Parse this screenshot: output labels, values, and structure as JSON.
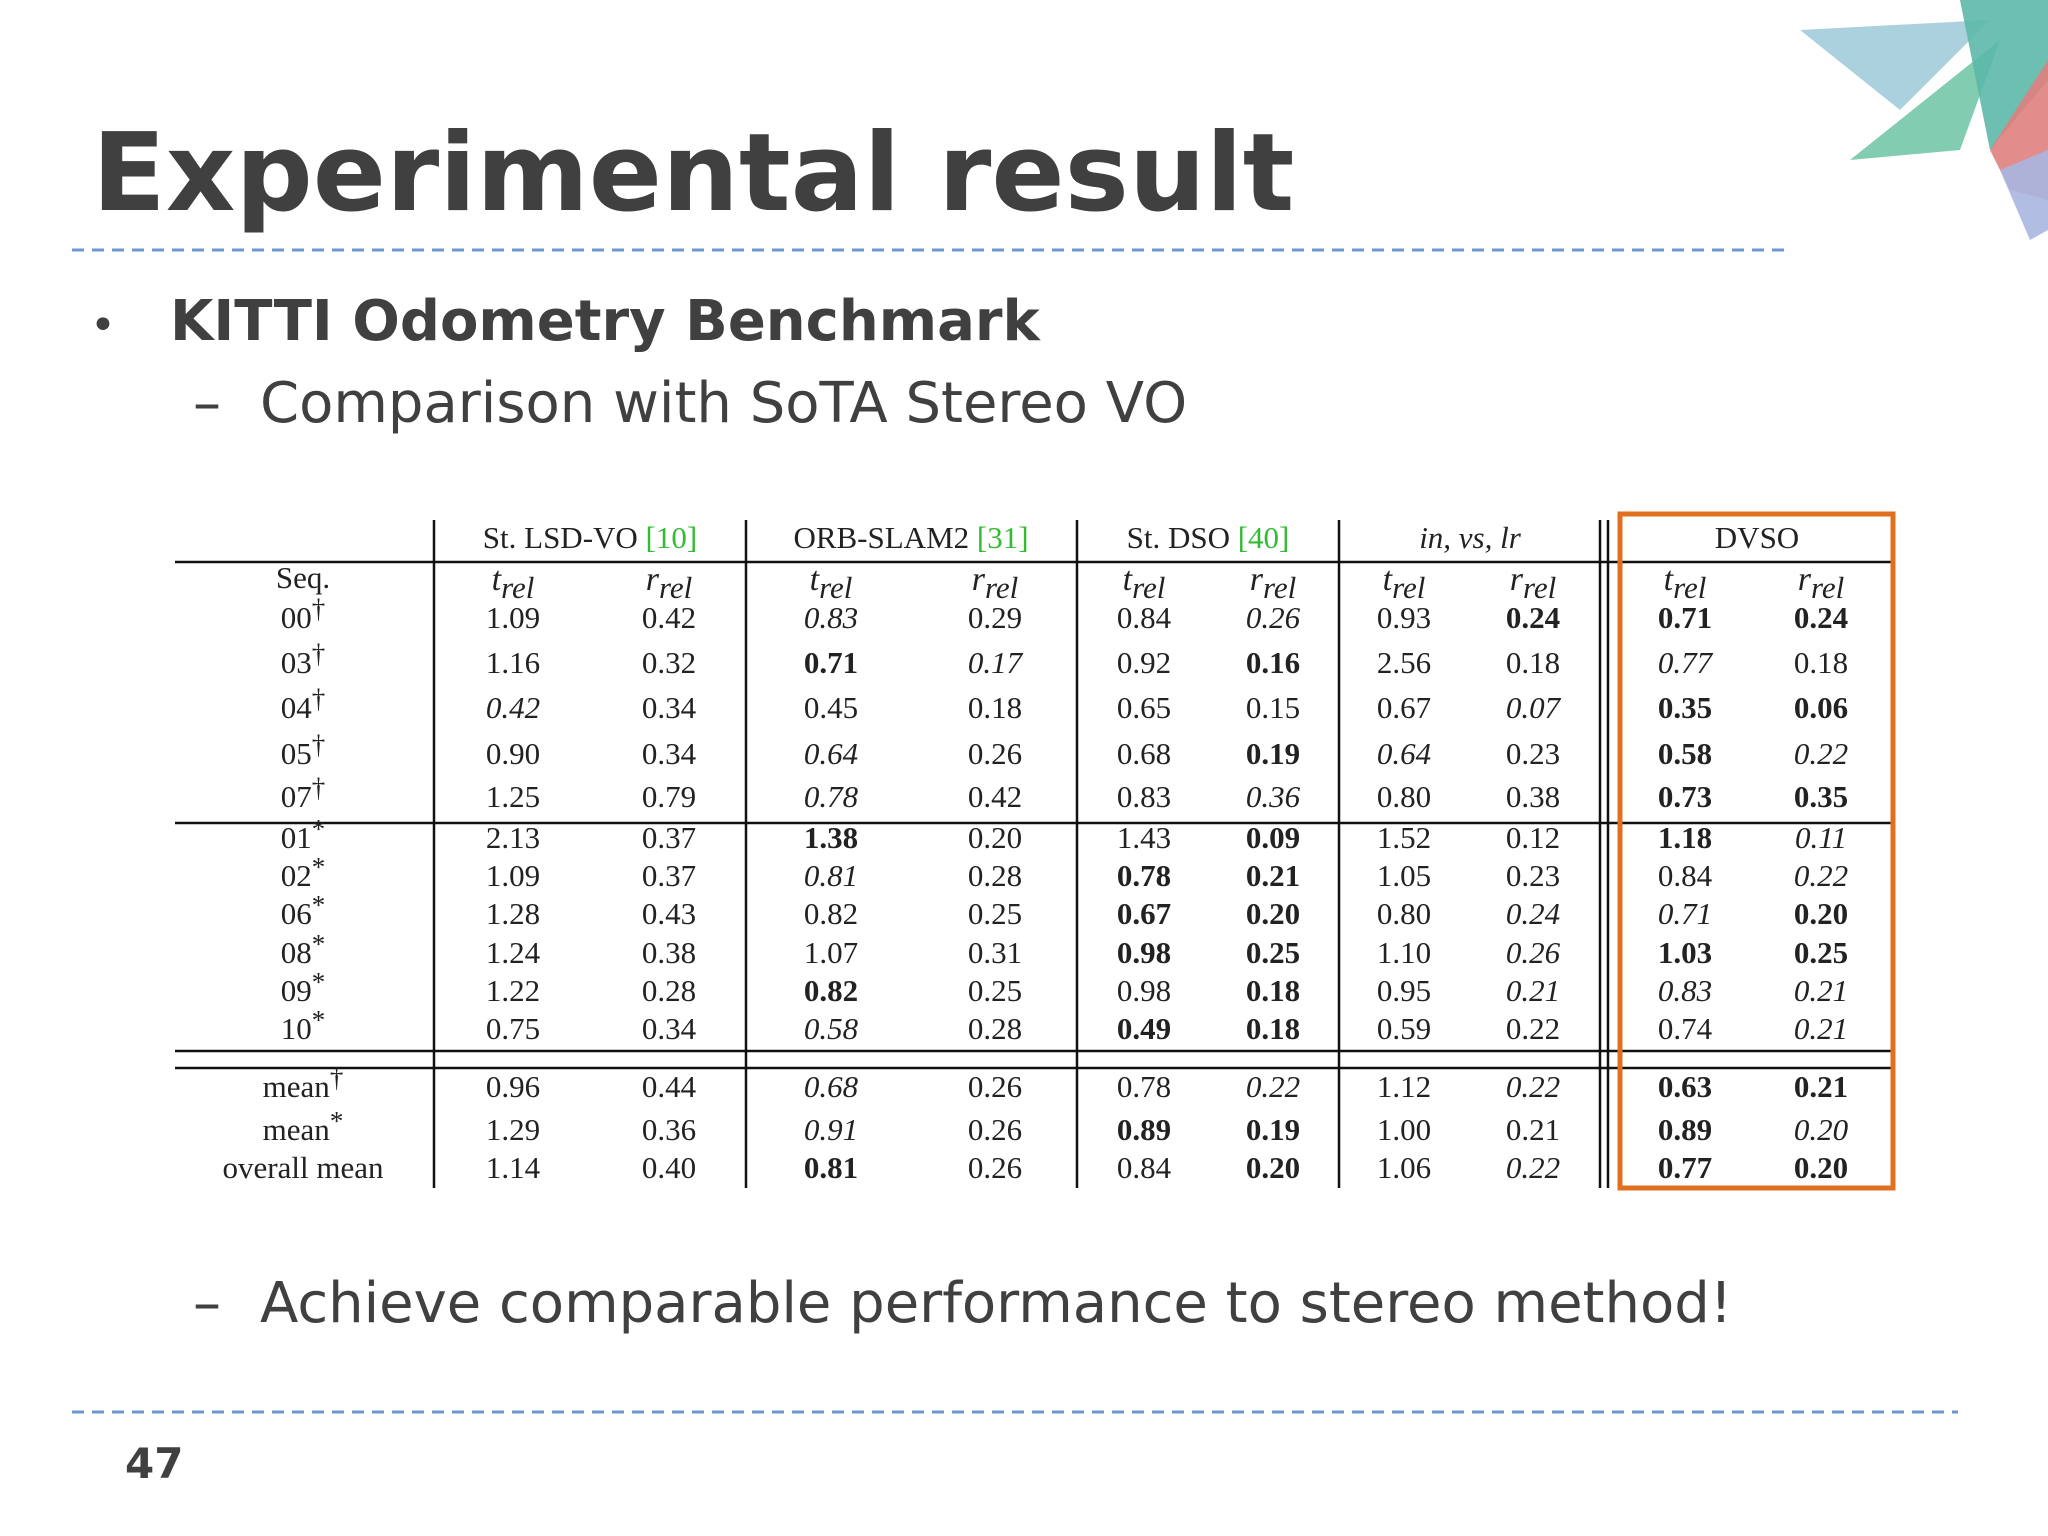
{
  "title": "Experimental result",
  "bullet": {
    "text": "KITTI Odometry Benchmark",
    "sub": "Comparison with SoTA Stereo VO"
  },
  "conclusion": "Achieve comparable performance to stereo method!",
  "page_number": "47",
  "table": {
    "groups": [
      {
        "name": "St. LSD-VO",
        "ref": "[10]"
      },
      {
        "name": "ORB-SLAM2",
        "ref": "[31]"
      },
      {
        "name": "St. DSO",
        "ref": "[40]"
      },
      {
        "name": "in, vs, lr"
      },
      {
        "name": "DVSO"
      }
    ],
    "seq_header": "Seq.",
    "metrics": [
      {
        "base": "t",
        "sub": "rel"
      },
      {
        "base": "r",
        "sub": "rel"
      },
      {
        "base": "t",
        "sub": "rel"
      },
      {
        "base": "r",
        "sub": "rel"
      },
      {
        "base": "t",
        "sub": "rel"
      },
      {
        "base": "r",
        "sub": "rel"
      },
      {
        "base": "t",
        "sub": "rel"
      },
      {
        "base": "r",
        "sub": "rel"
      },
      {
        "base": "t",
        "sub": "rel"
      },
      {
        "base": "r",
        "sub": "rel"
      }
    ],
    "sections": [
      {
        "rows": [
          {
            "label": "00",
            "mark": "†",
            "cells": [
              "1.09",
              "0.42",
              "0.83",
              "0.29",
              "0.84",
              "0.26",
              "0.93",
              "0.24",
              "0.71",
              "0.24"
            ],
            "styles": [
              "n",
              "n",
              "i",
              "n",
              "n",
              "i",
              "n",
              "b",
              "b",
              "b"
            ]
          },
          {
            "label": "03",
            "mark": "†",
            "cells": [
              "1.16",
              "0.32",
              "0.71",
              "0.17",
              "0.92",
              "0.16",
              "2.56",
              "0.18",
              "0.77",
              "0.18"
            ],
            "styles": [
              "n",
              "n",
              "b",
              "i",
              "n",
              "b",
              "n",
              "n",
              "i",
              "n"
            ]
          },
          {
            "label": "04",
            "mark": "†",
            "cells": [
              "0.42",
              "0.34",
              "0.45",
              "0.18",
              "0.65",
              "0.15",
              "0.67",
              "0.07",
              "0.35",
              "0.06"
            ],
            "styles": [
              "i",
              "n",
              "n",
              "n",
              "n",
              "n",
              "n",
              "i",
              "b",
              "b"
            ]
          },
          {
            "label": "05",
            "mark": "†",
            "cells": [
              "0.90",
              "0.34",
              "0.64",
              "0.26",
              "0.68",
              "0.19",
              "0.64",
              "0.23",
              "0.58",
              "0.22"
            ],
            "styles": [
              "n",
              "n",
              "i",
              "n",
              "n",
              "b",
              "i",
              "n",
              "b",
              "i"
            ]
          },
          {
            "label": "07",
            "mark": "†",
            "cells": [
              "1.25",
              "0.79",
              "0.78",
              "0.42",
              "0.83",
              "0.36",
              "0.80",
              "0.38",
              "0.73",
              "0.35"
            ],
            "styles": [
              "n",
              "n",
              "i",
              "n",
              "n",
              "i",
              "n",
              "n",
              "b",
              "b"
            ]
          }
        ]
      },
      {
        "rows": [
          {
            "label": "01",
            "mark": "*",
            "cells": [
              "2.13",
              "0.37",
              "1.38",
              "0.20",
              "1.43",
              "0.09",
              "1.52",
              "0.12",
              "1.18",
              "0.11"
            ],
            "styles": [
              "n",
              "n",
              "b",
              "n",
              "n",
              "b",
              "n",
              "n",
              "b",
              "i"
            ]
          },
          {
            "label": "02",
            "mark": "*",
            "cells": [
              "1.09",
              "0.37",
              "0.81",
              "0.28",
              "0.78",
              "0.21",
              "1.05",
              "0.23",
              "0.84",
              "0.22"
            ],
            "styles": [
              "n",
              "n",
              "i",
              "n",
              "b",
              "b",
              "n",
              "n",
              "n",
              "i"
            ]
          },
          {
            "label": "06",
            "mark": "*",
            "cells": [
              "1.28",
              "0.43",
              "0.82",
              "0.25",
              "0.67",
              "0.20",
              "0.80",
              "0.24",
              "0.71",
              "0.20"
            ],
            "styles": [
              "n",
              "n",
              "n",
              "n",
              "b",
              "b",
              "n",
              "i",
              "i",
              "b"
            ]
          },
          {
            "label": "08",
            "mark": "*",
            "cells": [
              "1.24",
              "0.38",
              "1.07",
              "0.31",
              "0.98",
              "0.25",
              "1.10",
              "0.26",
              "1.03",
              "0.25"
            ],
            "styles": [
              "n",
              "n",
              "n",
              "n",
              "b",
              "b",
              "n",
              "i",
              "b",
              "b"
            ]
          },
          {
            "label": "09",
            "mark": "*",
            "cells": [
              "1.22",
              "0.28",
              "0.82",
              "0.25",
              "0.98",
              "0.18",
              "0.95",
              "0.21",
              "0.83",
              "0.21"
            ],
            "styles": [
              "n",
              "n",
              "b",
              "n",
              "n",
              "b",
              "n",
              "i",
              "i",
              "i"
            ]
          },
          {
            "label": "10",
            "mark": "*",
            "cells": [
              "0.75",
              "0.34",
              "0.58",
              "0.28",
              "0.49",
              "0.18",
              "0.59",
              "0.22",
              "0.74",
              "0.21"
            ],
            "styles": [
              "n",
              "n",
              "i",
              "n",
              "b",
              "b",
              "n",
              "n",
              "n",
              "i"
            ]
          }
        ]
      },
      {
        "rows": [
          {
            "label": "mean",
            "mark": "†",
            "cells": [
              "0.96",
              "0.44",
              "0.68",
              "0.26",
              "0.78",
              "0.22",
              "1.12",
              "0.22",
              "0.63",
              "0.21"
            ],
            "styles": [
              "n",
              "n",
              "i",
              "n",
              "n",
              "i",
              "n",
              "i",
              "b",
              "b"
            ]
          },
          {
            "label": "mean",
            "mark": "*",
            "cells": [
              "1.29",
              "0.36",
              "0.91",
              "0.26",
              "0.89",
              "0.19",
              "1.00",
              "0.21",
              "0.89",
              "0.20"
            ],
            "styles": [
              "n",
              "n",
              "i",
              "n",
              "b",
              "b",
              "n",
              "n",
              "b",
              "i"
            ]
          },
          {
            "label": "overall mean",
            "cells": [
              "1.14",
              "0.40",
              "0.81",
              "0.26",
              "0.84",
              "0.20",
              "1.06",
              "0.22",
              "0.77",
              "0.20"
            ],
            "styles": [
              "n",
              "n",
              "b",
              "n",
              "n",
              "b",
              "n",
              "i",
              "b",
              "b"
            ]
          }
        ]
      }
    ]
  }
}
